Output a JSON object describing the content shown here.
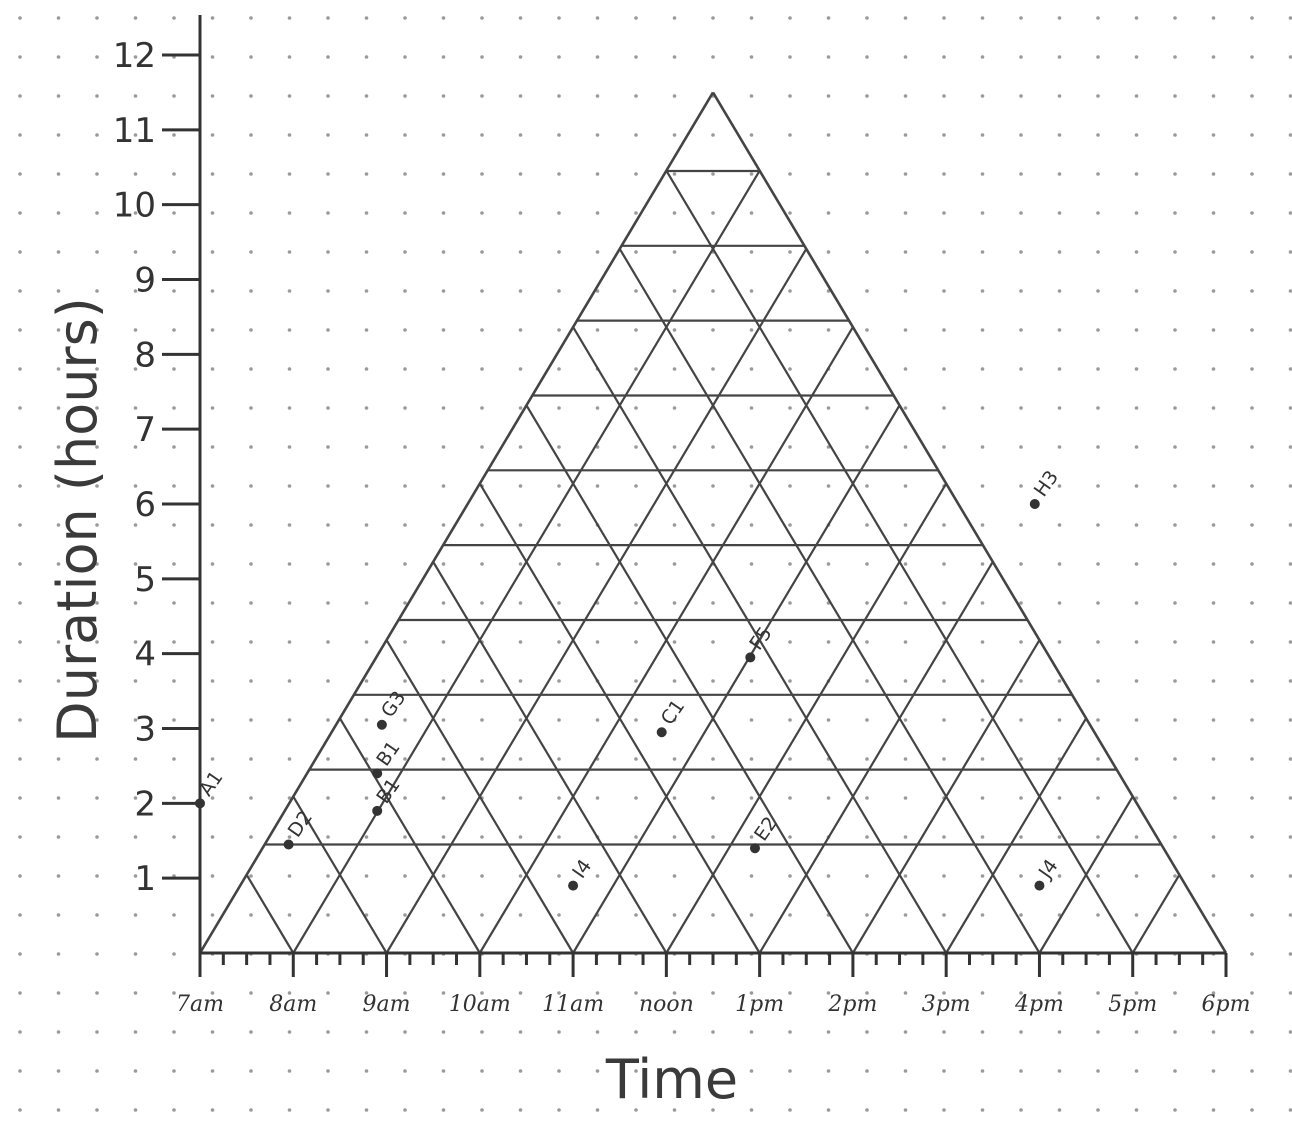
{
  "chart_data": {
    "type": "scatter",
    "chart_form": "triangular interval plot",
    "xlabel": "Time",
    "ylabel": "Duration (hours)",
    "x_ticks": [
      "7am",
      "8am",
      "9am",
      "10am",
      "11am",
      "noon",
      "1pm",
      "2pm",
      "3pm",
      "4pm",
      "5pm",
      "6pm"
    ],
    "y_ticks": [
      "1",
      "2",
      "3",
      "4",
      "5",
      "6",
      "7",
      "8",
      "9",
      "10",
      "11",
      "12"
    ],
    "xlim": [
      7,
      18
    ],
    "ylim": [
      0,
      12
    ],
    "grid": true,
    "points": [
      {
        "label": "A1",
        "x": 7.0,
        "y": 2.0
      },
      {
        "label": "D2",
        "x": 7.95,
        "y": 1.45
      },
      {
        "label": "B1",
        "x": 8.9,
        "y": 2.4
      },
      {
        "label": "B1",
        "x": 8.9,
        "y": 1.9
      },
      {
        "label": "G3",
        "x": 8.95,
        "y": 3.05
      },
      {
        "label": "I4",
        "x": 11.0,
        "y": 0.9
      },
      {
        "label": "C1",
        "x": 11.95,
        "y": 2.95
      },
      {
        "label": "F5",
        "x": 12.9,
        "y": 3.95
      },
      {
        "label": "E2",
        "x": 12.95,
        "y": 1.4
      },
      {
        "label": "H3",
        "x": 15.95,
        "y": 6.0
      },
      {
        "label": "J4",
        "x": 16.0,
        "y": 0.9
      }
    ]
  }
}
